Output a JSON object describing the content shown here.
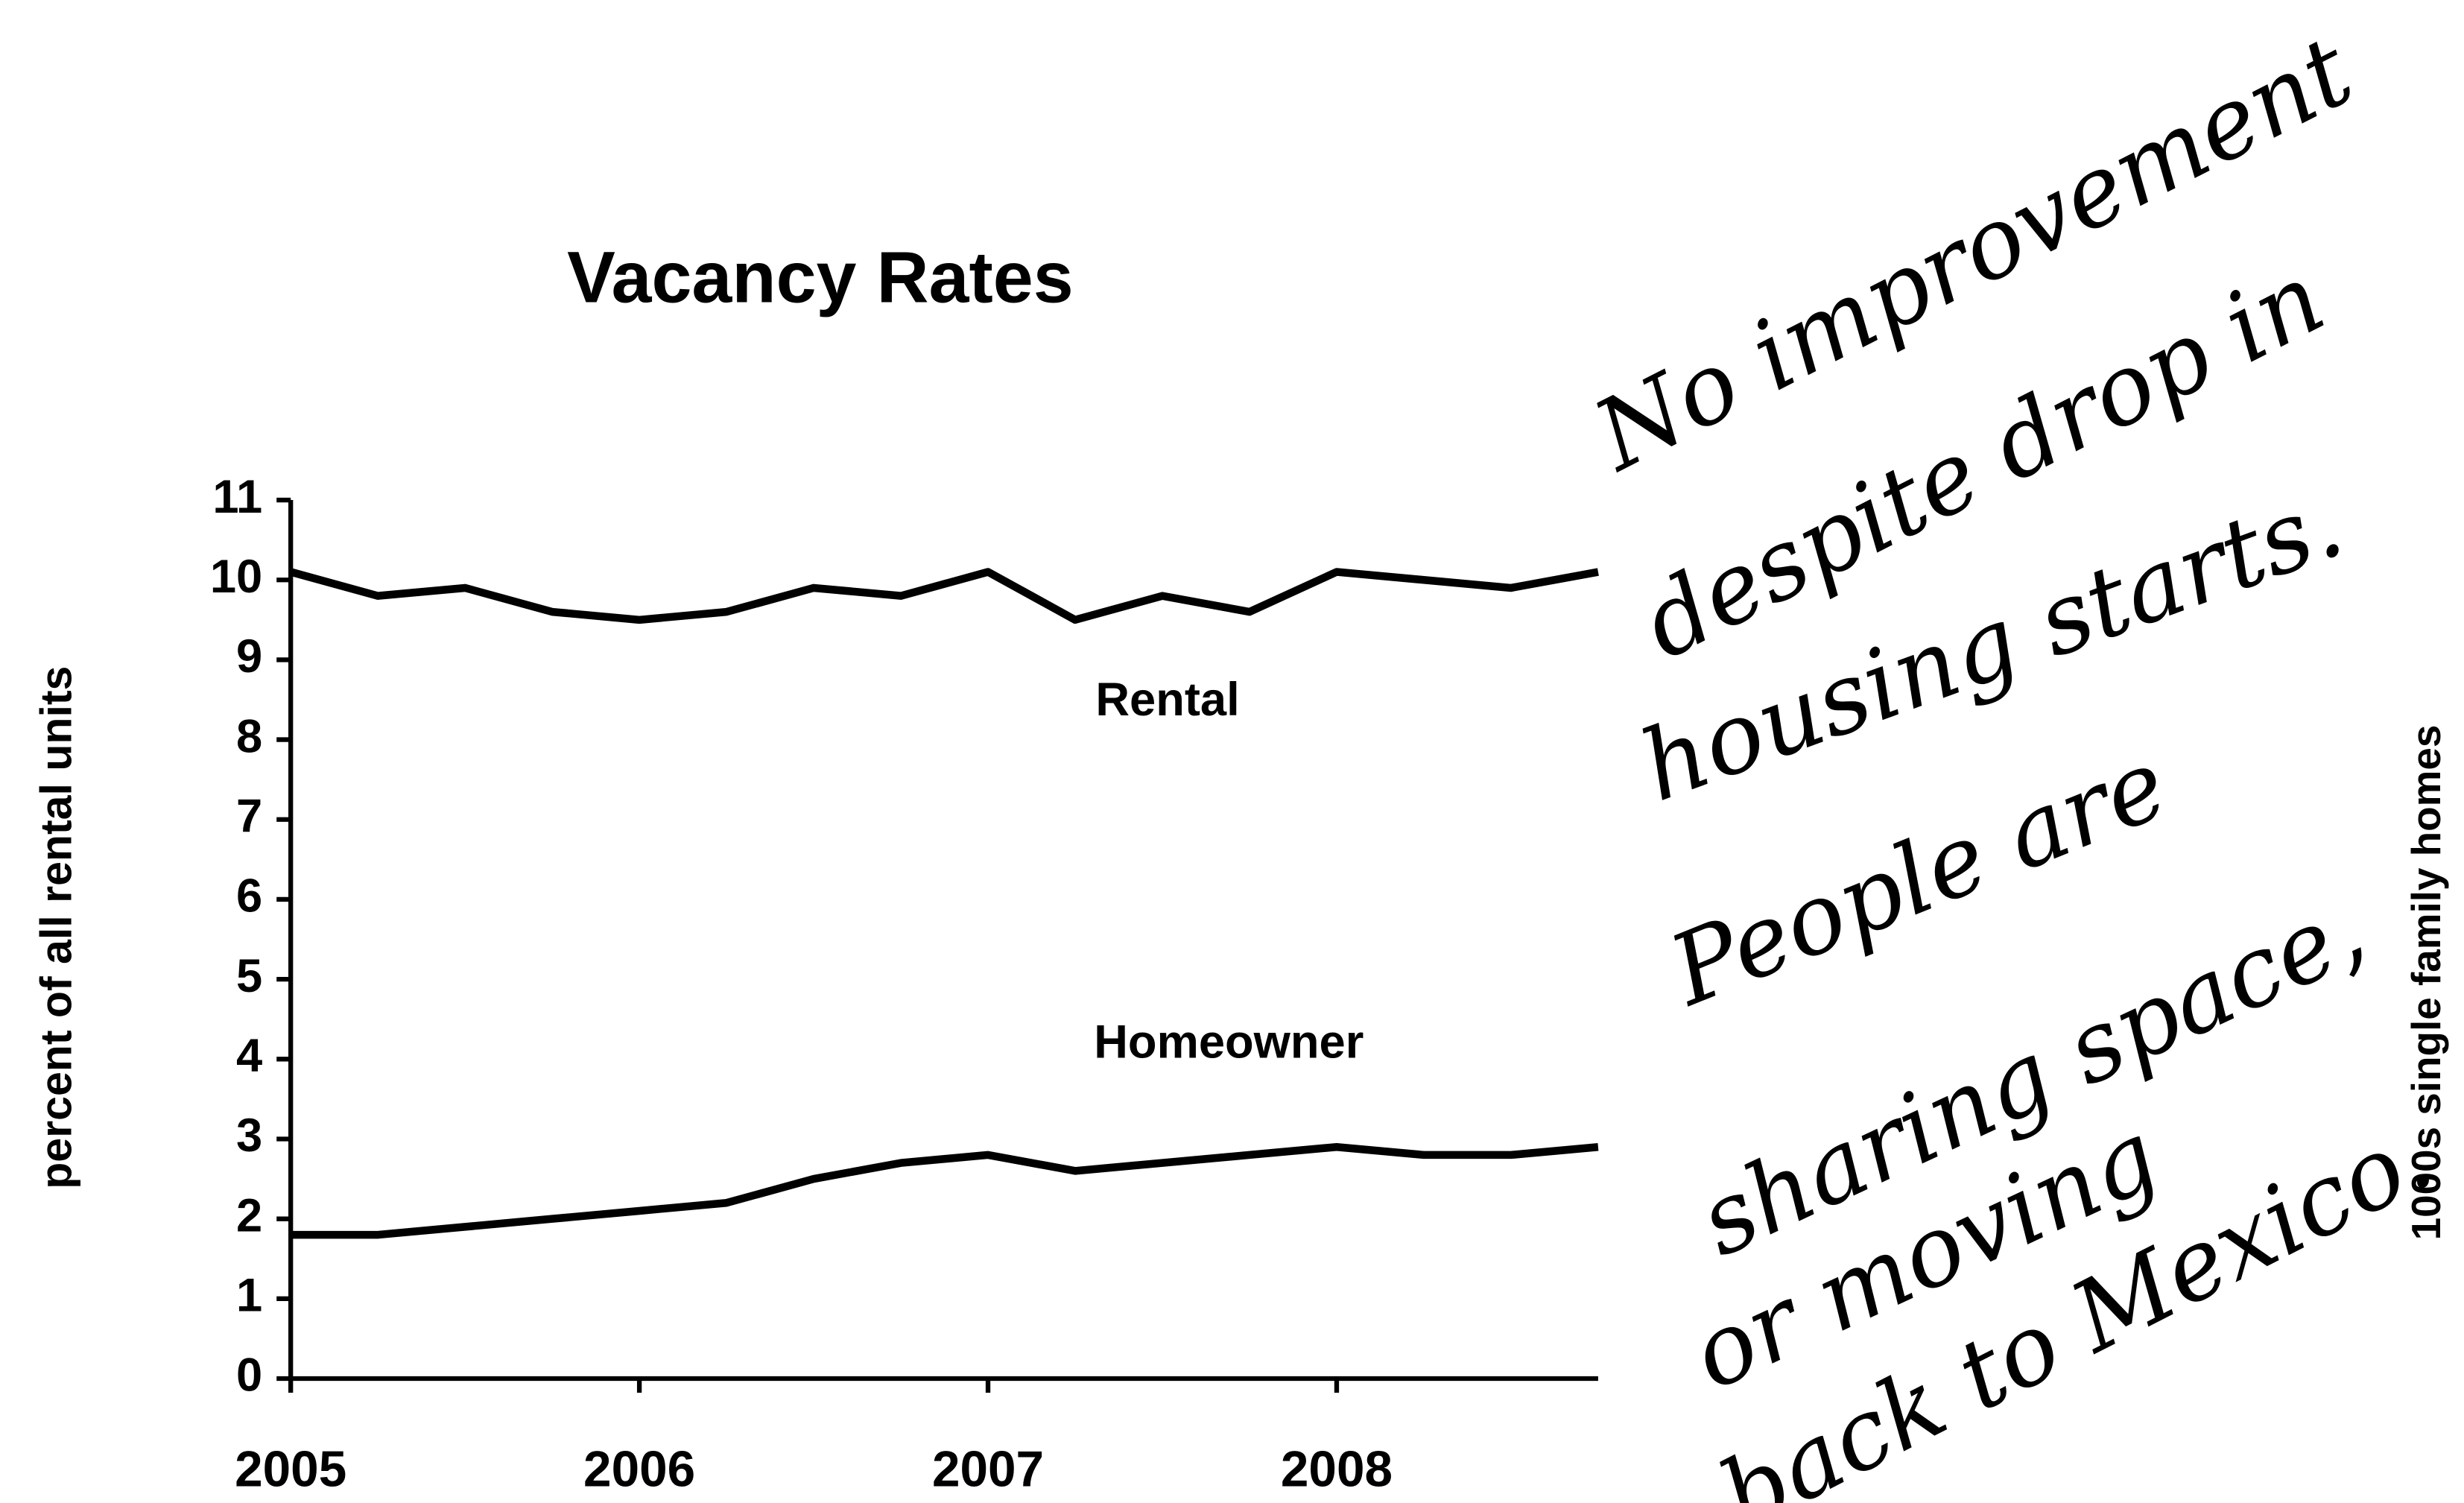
{
  "chart_data": {
    "type": "line",
    "title": "Vacancy Rates",
    "y_label": "percent of all rental units",
    "y2_label": "1000s single family homes",
    "x": [
      2005,
      2005.25,
      2005.5,
      2005.75,
      2006,
      2006.25,
      2006.5,
      2006.75,
      2007,
      2007.25,
      2007.5,
      2007.75,
      2008,
      2008.25,
      2008.5,
      2008.75
    ],
    "xlim": [
      2005,
      2008.75
    ],
    "xticks": [
      2005,
      2006,
      2007,
      2008
    ],
    "ylim": [
      0,
      11
    ],
    "yticks": [
      0,
      1,
      2,
      3,
      4,
      5,
      6,
      7,
      8,
      9,
      10,
      11
    ],
    "grid": false,
    "series": [
      {
        "name": "Rental",
        "color": "#000000",
        "values": [
          10.1,
          9.8,
          9.9,
          9.6,
          9.5,
          9.6,
          9.9,
          9.8,
          10.1,
          9.5,
          9.8,
          9.6,
          10.1,
          10.0,
          9.9,
          10.1
        ]
      },
      {
        "name": "Homeowner",
        "color": "#000000",
        "values": [
          1.8,
          1.8,
          1.9,
          2.0,
          2.1,
          2.2,
          2.5,
          2.7,
          2.8,
          2.6,
          2.7,
          2.8,
          2.9,
          2.8,
          2.8,
          2.9
        ]
      }
    ],
    "note_lines": [
      "No improvement",
      "despite drop in",
      "housing starts.",
      "People are",
      "sharing space,",
      "or moving",
      "back to Mexico."
    ]
  }
}
